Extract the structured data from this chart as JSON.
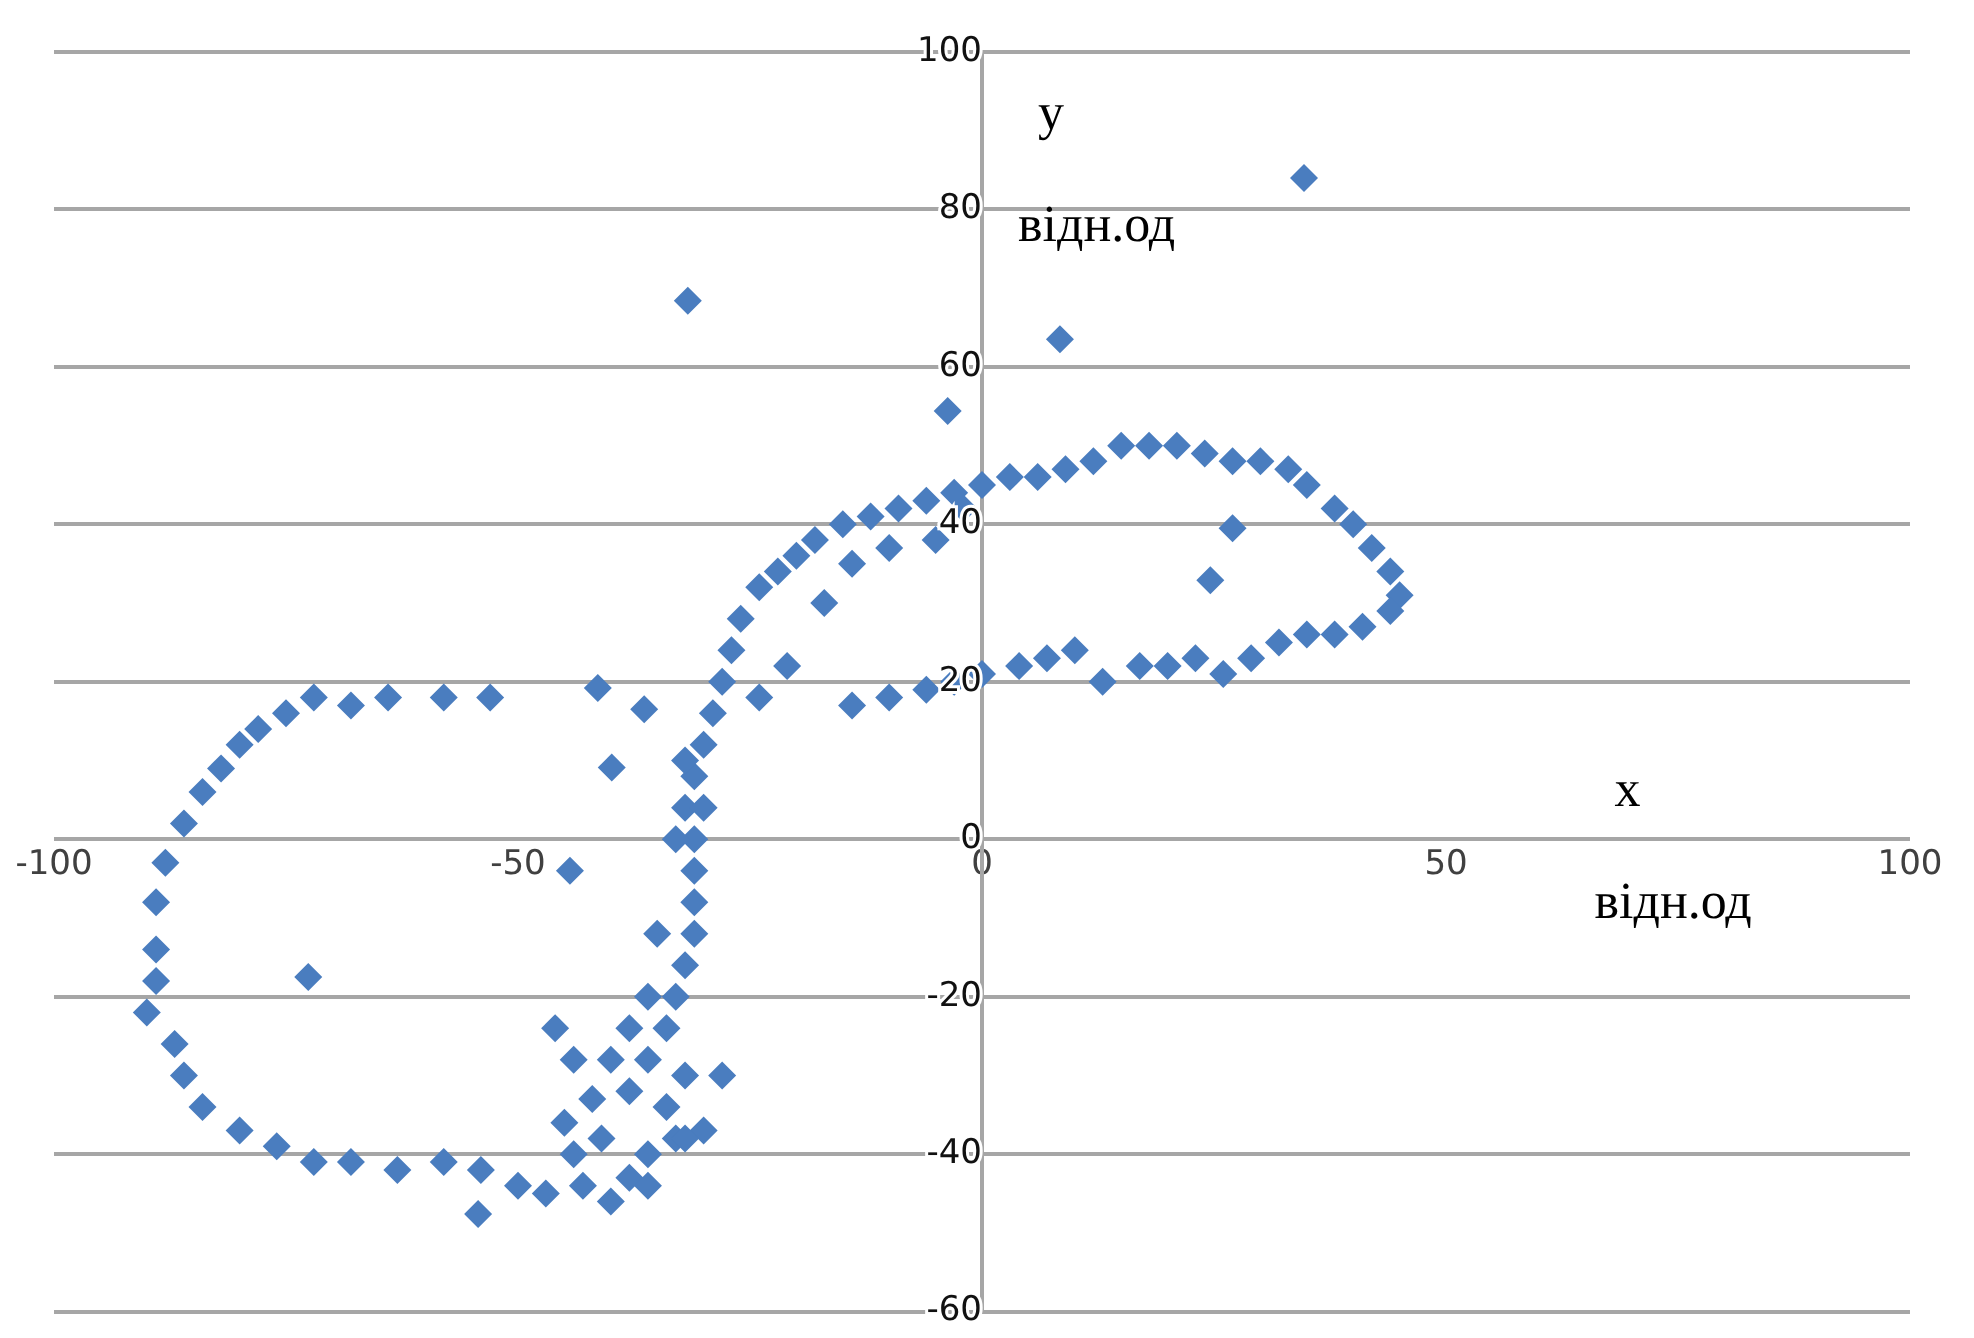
{
  "chart_data": {
    "type": "scatter",
    "xlabel": "x відн.од",
    "ylabel": "y відн.од",
    "xlim": [
      -100,
      100
    ],
    "xticks": [
      -100,
      -50,
      0,
      50,
      100
    ],
    "ylim": [
      -60,
      100
    ],
    "yticks": [
      -60,
      -40,
      -20,
      0,
      20,
      40,
      60,
      80,
      100
    ],
    "grid": "y",
    "legend": false,
    "marker": "diamond",
    "series": [
      {
        "color": "#4a7dbf",
        "x": [
          34.7,
          -31.7,
          8.4,
          -3.7,
          -41.4,
          -36.4,
          -39.9,
          -44.4,
          -72.6,
          -54.3,
          27,
          24.6,
          -75,
          -72,
          -68,
          -64,
          -58,
          -53,
          -78,
          -80,
          -82,
          -84,
          -86,
          -88,
          -89,
          -89,
          -89,
          -90,
          -87,
          -86,
          -84,
          -80,
          -76,
          -72,
          -68,
          -63,
          -58,
          -54,
          -50,
          -47,
          -43,
          -40,
          -38,
          -36,
          -33,
          -30,
          -41,
          -45,
          -38,
          -36,
          -34,
          -33,
          -32,
          -31,
          -31,
          -31,
          -31,
          -32,
          -31,
          -30,
          -29,
          -28,
          -27,
          -26,
          -24,
          -22,
          -20,
          -18,
          -15,
          -12,
          -9,
          -6,
          -3,
          0,
          3,
          6,
          9,
          12,
          15,
          18,
          21,
          24,
          27,
          30,
          33,
          35,
          38,
          40,
          42,
          44,
          45,
          44,
          41,
          38,
          35,
          32,
          29,
          26,
          23,
          20,
          17,
          13,
          10,
          7,
          4,
          0,
          -3,
          -6,
          -10,
          -14,
          -36,
          -38,
          -40,
          -42,
          -44,
          -36,
          -34,
          -32,
          -28,
          -32,
          -24,
          -21,
          -17,
          -14,
          -10,
          -5,
          -2,
          -46,
          -44,
          -32,
          -30,
          -35,
          -33
        ],
        "values": [
          84,
          68.4,
          63.5,
          54.4,
          19.2,
          16.5,
          9.1,
          -4,
          -17.5,
          -47.6,
          39.5,
          32.9,
          16,
          18,
          17,
          18,
          18,
          18,
          14,
          12,
          9,
          6,
          2,
          -3,
          -8,
          -14,
          -18,
          -22,
          -26,
          -30,
          -34,
          -37,
          -39,
          -41,
          -41,
          -42,
          -41,
          -42,
          -44,
          -45,
          -44,
          -46,
          -43,
          -40,
          -38,
          -37,
          -38,
          -36,
          -32,
          -28,
          -24,
          -20,
          -16,
          -12,
          -8,
          -4,
          0,
          4,
          8,
          12,
          16,
          20,
          24,
          28,
          32,
          34,
          36,
          38,
          40,
          41,
          42,
          43,
          44,
          45,
          46,
          46,
          47,
          48,
          50,
          50,
          50,
          49,
          48,
          48,
          47,
          45,
          42,
          40,
          37,
          34,
          31,
          29,
          27,
          26,
          26,
          25,
          23,
          21,
          23,
          22,
          22,
          20,
          24,
          23,
          22,
          21,
          20,
          19,
          18,
          17,
          -20,
          -24,
          -28,
          -33,
          -40,
          -44,
          -34,
          -30,
          -30,
          -38,
          18,
          22,
          30,
          35,
          37,
          38,
          42,
          -24,
          -28,
          10,
          4,
          -12,
          0
        ]
      }
    ]
  }
}
